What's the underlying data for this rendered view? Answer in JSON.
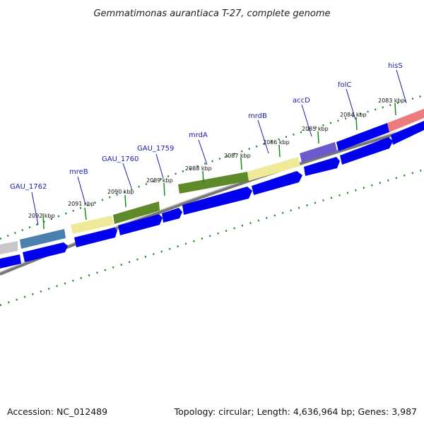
{
  "title": "Gemmatimonas aurantiaca T-27, complete genome",
  "footer": {
    "accession": "Accession: NC_012489",
    "summary": "Topology: circular; Length: 4,636,964 bp; Genes: 3,987"
  },
  "kbp_ticks": [
    {
      "kbp": 2092,
      "label": "2092 kbp"
    },
    {
      "kbp": 2091,
      "label": "2091 kbp"
    },
    {
      "kbp": 2090,
      "label": "2090 kbp"
    },
    {
      "kbp": 2089,
      "label": "2089 kbp"
    },
    {
      "kbp": 2088,
      "label": "2088 kbp"
    },
    {
      "kbp": 2087,
      "label": "2087 kbp"
    },
    {
      "kbp": 2086,
      "label": "2086 kbp"
    },
    {
      "kbp": 2085,
      "label": "2085 kbp"
    },
    {
      "kbp": 2084,
      "label": "2084 kbp"
    },
    {
      "kbp": 2083,
      "label": "2083 kbp"
    }
  ],
  "genes": [
    {
      "name": "GAU_1762",
      "color": "#4a7fae"
    },
    {
      "name": "mreB",
      "color": "#eeea9a"
    },
    {
      "name": "GAU_1760",
      "color": "#5f8a2a"
    },
    {
      "name": "GAU_1759",
      "color": null
    },
    {
      "name": "mrdA",
      "color": "#5f8a2a"
    },
    {
      "name": "mrdB",
      "color": "#eeea9a"
    },
    {
      "name": "accD",
      "color": "#6a5acd"
    },
    {
      "name": "folC",
      "color": "#0000ee"
    },
    {
      "name": "hisS",
      "color": "#ee7b7b"
    }
  ],
  "colors": {
    "cds": "#0000ee",
    "backbone": "#888888",
    "ticks": "#1a8a1a",
    "unknown_feature": "#c8c8c8"
  }
}
